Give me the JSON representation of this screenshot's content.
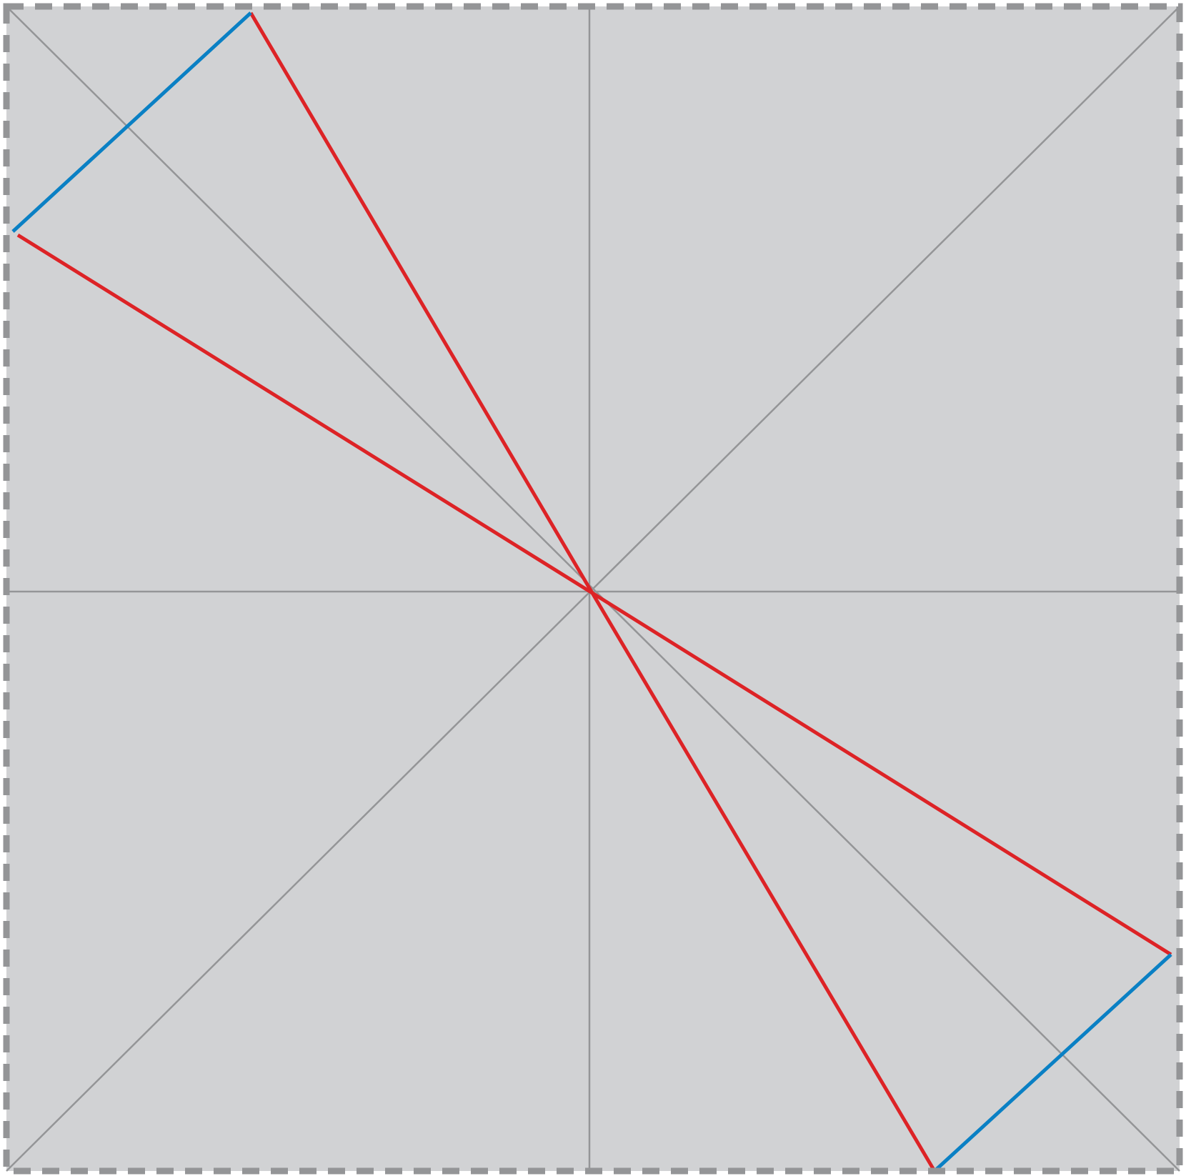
{
  "diagram": {
    "kind": "crease-pattern",
    "colors": {
      "background": "#ffffff",
      "paper": "#d1d2d4",
      "border": "#949597",
      "reference_line": "#949597",
      "mountain_fold": "#dd2326",
      "valley_fold": "#0a80c4"
    },
    "styles": {
      "border": "dashed",
      "reference_lines": "solid",
      "mountain_folds": "solid",
      "valley_folds": "solid"
    },
    "reference_lines": [
      "diagonal-top-left-to-bottom-right",
      "diagonal-bottom-left-to-top-right",
      "vertical-center",
      "horizontal-center"
    ],
    "mountain_fold_count": 4,
    "valley_fold_count": 2
  }
}
